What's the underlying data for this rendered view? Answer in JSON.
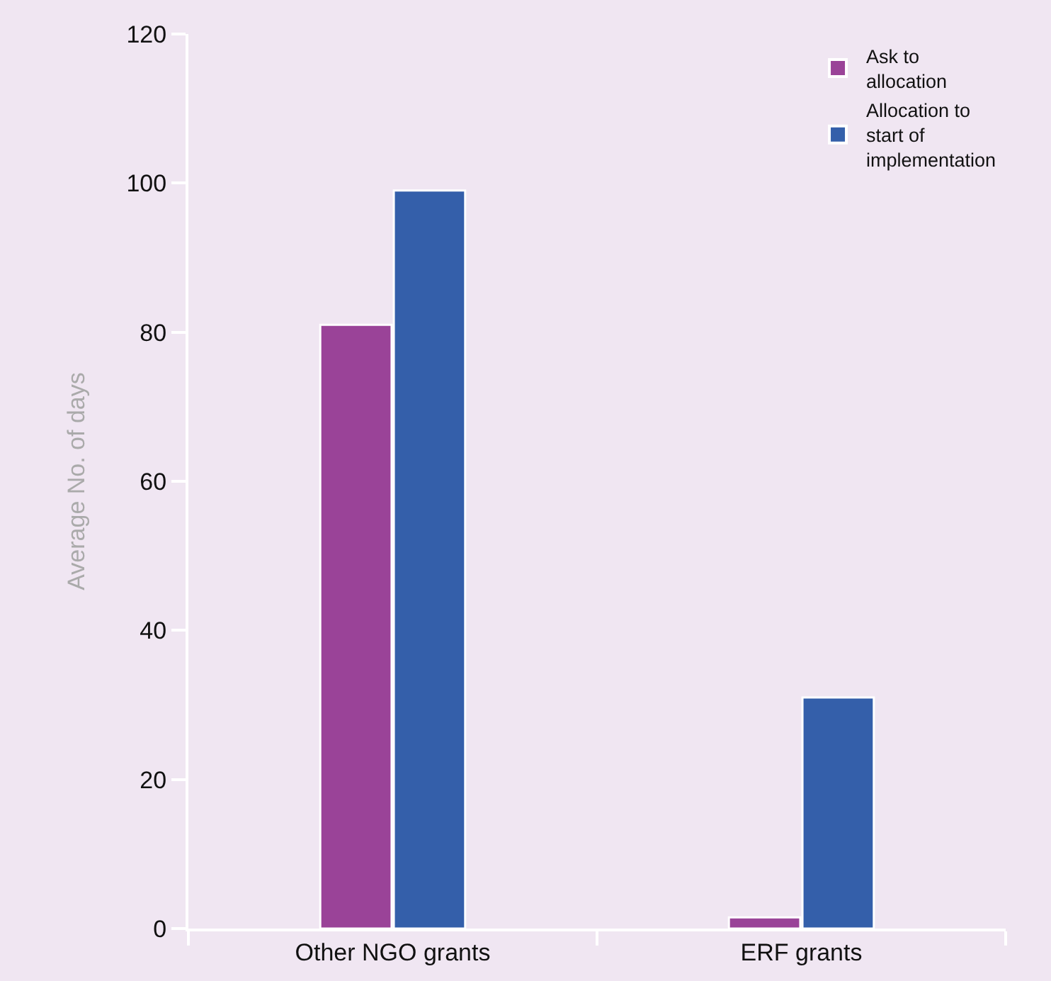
{
  "chart_data": {
    "type": "bar",
    "ylabel": "Average No. of days",
    "categories": [
      "Other NGO grants",
      "ERF grants"
    ],
    "series": [
      {
        "name": "Ask to allocation",
        "color": "#9a4398",
        "values": [
          81,
          1.5
        ]
      },
      {
        "name": "Allocation to start of implementation",
        "color": "#345faa",
        "values": [
          99,
          31
        ]
      }
    ],
    "ylim": [
      0,
      120
    ],
    "yticks": [
      0,
      20,
      40,
      60,
      80,
      100,
      120
    ],
    "grid": false,
    "legend": "top right"
  }
}
